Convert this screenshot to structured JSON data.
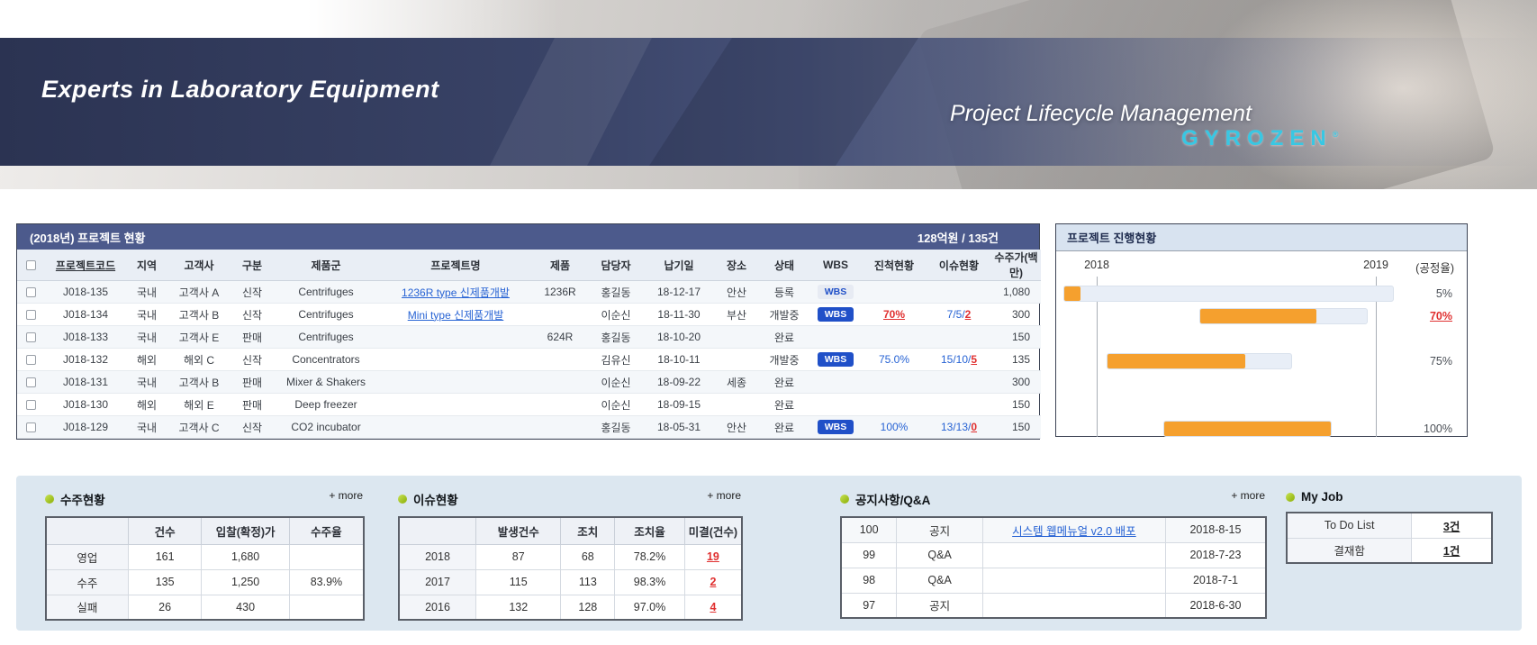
{
  "banner": {
    "tagline_left": "Experts in Laboratory Equipment",
    "tagline_right": "Project Lifecycle Management",
    "brand": "GYROZEN",
    "brand_mark": "®",
    "brand_color": "#38c7e3"
  },
  "projects": {
    "title": "(2018년) 프로젝트 현황",
    "summary": "128억원 / 135건",
    "wbs_label": "WBS",
    "columns": [
      "프로젝트코드",
      "지역",
      "고객사",
      "구분",
      "제품군",
      "프로젝트명",
      "제품",
      "담당자",
      "납기일",
      "장소",
      "상태",
      "WBS",
      "진척현황",
      "이슈현황",
      "수주가(백만)"
    ],
    "rows": [
      {
        "code": "J018-135",
        "region": "국내",
        "customer": "고객사 A",
        "type": "신작",
        "family": "Centrifuges",
        "name": "1236R type 신제품개발",
        "product": "1236R",
        "manager": "홍길동",
        "due": "18-12-17",
        "place": "안산",
        "status": "등록",
        "wbs": "light",
        "progress": "",
        "progress_alert": false,
        "issues": "",
        "issues_alert": "",
        "amount": "1,080"
      },
      {
        "code": "J018-134",
        "region": "국내",
        "customer": "고객사 B",
        "type": "신작",
        "family": "Centrifuges",
        "name": "Mini type 신제품개발",
        "product": "",
        "manager": "이순신",
        "due": "18-11-30",
        "place": "부산",
        "status": "개발중",
        "wbs": "blue",
        "progress": "70%",
        "progress_alert": true,
        "issues": "7/5/",
        "issues_alert": "2",
        "amount": "300"
      },
      {
        "code": "J018-133",
        "region": "국내",
        "customer": "고객사 E",
        "type": "판매",
        "family": "Centrifuges",
        "name": "",
        "product": "624R",
        "manager": "홍길동",
        "due": "18-10-20",
        "place": "",
        "status": "완료",
        "wbs": "",
        "progress": "",
        "progress_alert": false,
        "issues": "",
        "issues_alert": "",
        "amount": "150"
      },
      {
        "code": "J018-132",
        "region": "해외",
        "customer": "해외 C",
        "type": "신작",
        "family": "Concentrators",
        "name": "",
        "product": "",
        "manager": "김유신",
        "due": "18-10-11",
        "place": "",
        "status": "개발중",
        "wbs": "blue",
        "progress": "75.0%",
        "progress_alert": false,
        "issues": "15/10/",
        "issues_alert": "5",
        "amount": "135"
      },
      {
        "code": "J018-131",
        "region": "국내",
        "customer": "고객사 B",
        "type": "판매",
        "family": "Mixer & Shakers",
        "name": "",
        "product": "",
        "manager": "이순신",
        "due": "18-09-22",
        "place": "세종",
        "status": "완료",
        "wbs": "",
        "progress": "",
        "progress_alert": false,
        "issues": "",
        "issues_alert": "",
        "amount": "300"
      },
      {
        "code": "J018-130",
        "region": "해외",
        "customer": "해외 E",
        "type": "판매",
        "family": "Deep freezer",
        "name": "",
        "product": "",
        "manager": "이순신",
        "due": "18-09-15",
        "place": "",
        "status": "완료",
        "wbs": "",
        "progress": "",
        "progress_alert": false,
        "issues": "",
        "issues_alert": "",
        "amount": "150"
      },
      {
        "code": "J018-129",
        "region": "국내",
        "customer": "고객사 C",
        "type": "신작",
        "family": "CO2 incubator",
        "name": "",
        "product": "",
        "manager": "홍길동",
        "due": "18-05-31",
        "place": "안산",
        "status": "완료",
        "wbs": "blue",
        "progress": "100%",
        "progress_alert": false,
        "issues": "13/13/",
        "issues_alert": "0",
        "amount": "150"
      }
    ]
  },
  "gantt": {
    "title": "프로젝트 진행현황",
    "axis_left": "2018",
    "axis_right": "2019",
    "axis_unit": "(공정율)",
    "bar_color": "#f5a02e",
    "bars": [
      {
        "row": 0,
        "track_left_pct": 0,
        "track_width_pct": 81.5,
        "fill_pct": 5,
        "label": "5%",
        "alert": false
      },
      {
        "row": 1,
        "track_left_pct": 33.5,
        "track_width_pct": 41.5,
        "fill_pct": 70,
        "label": "70%",
        "alert": true
      },
      {
        "row": 3,
        "track_left_pct": 10.7,
        "track_width_pct": 45.7,
        "fill_pct": 75,
        "label": "75%",
        "alert": false
      },
      {
        "row": 6,
        "track_left_pct": 24.7,
        "track_width_pct": 41.5,
        "fill_pct": 100,
        "label": "100%",
        "alert": false
      }
    ]
  },
  "orders": {
    "title": "수주현황",
    "more_label": "+ more",
    "columns": [
      "",
      "건수",
      "입찰(확정)가",
      "수주율"
    ],
    "rows": [
      {
        "label": "영업",
        "count": "161",
        "bid": "1,680",
        "rate": ""
      },
      {
        "label": "수주",
        "count": "135",
        "bid": "1,250",
        "rate": "83.9%"
      },
      {
        "label": "실패",
        "count": "26",
        "bid": "430",
        "rate": ""
      }
    ]
  },
  "issues": {
    "title": "이슈현황",
    "more_label": "+ more",
    "columns": [
      "",
      "발생건수",
      "조치",
      "조치율",
      "미결(건수)"
    ],
    "rows": [
      {
        "label": "2018",
        "occurred": "87",
        "handled": "68",
        "rate": "78.2%",
        "pending": "19"
      },
      {
        "label": "2017",
        "occurred": "115",
        "handled": "113",
        "rate": "98.3%",
        "pending": "2"
      },
      {
        "label": "2016",
        "occurred": "132",
        "handled": "128",
        "rate": "97.0%",
        "pending": "4"
      }
    ]
  },
  "notices": {
    "title": "공지사항/Q&A",
    "more_label": "+ more",
    "rows": [
      {
        "no": "100",
        "category": "공지",
        "subject": "시스템 웹메뉴얼 v2.0 배포",
        "date": "2018-8-15",
        "link": true
      },
      {
        "no": "99",
        "category": "Q&A",
        "subject": "",
        "date": "2018-7-23",
        "link": false
      },
      {
        "no": "98",
        "category": "Q&A",
        "subject": "",
        "date": "2018-7-1",
        "link": false
      },
      {
        "no": "97",
        "category": "공지",
        "subject": "",
        "date": "2018-6-30",
        "link": false
      }
    ]
  },
  "myjob": {
    "title": "My Job",
    "rows": [
      {
        "label": "To Do List",
        "value": "3건"
      },
      {
        "label": "결재함",
        "value": "1건"
      }
    ]
  }
}
